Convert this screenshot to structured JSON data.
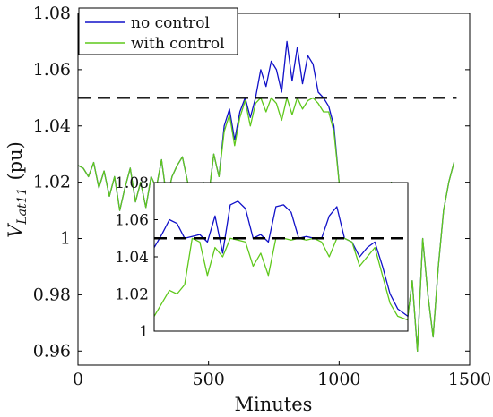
{
  "chart_data": [
    {
      "type": "line",
      "xlabel": "Minutes",
      "ylabel": "V",
      "ylabel_subscript": "Lat11",
      "ylabel_unit": "(pu)",
      "xlim": [
        0,
        1500
      ],
      "ylim": [
        0.955,
        1.08
      ],
      "xticks": [
        0,
        500,
        1000,
        1500
      ],
      "xtick_labels": [
        "0",
        "500",
        "1000",
        "1500"
      ],
      "yticks": [
        0.96,
        0.98,
        1.0,
        1.02,
        1.04,
        1.06,
        1.08
      ],
      "ytick_labels": [
        "0.96",
        "0.98",
        "1",
        "1.02",
        "1.04",
        "1.06",
        "1.08"
      ],
      "grid": false,
      "legend_position": "top-left",
      "reference_line": {
        "y": 1.05,
        "style": "dashed",
        "color": "#000000",
        "x_range": [
          0,
          1450
        ]
      },
      "series": [
        {
          "name": "no control",
          "color": "#1010c8",
          "x": [
            0,
            20,
            40,
            60,
            80,
            100,
            120,
            140,
            160,
            180,
            200,
            220,
            240,
            260,
            280,
            300,
            320,
            340,
            360,
            380,
            400,
            420,
            440,
            460,
            480,
            500,
            520,
            540,
            560,
            580,
            600,
            620,
            640,
            660,
            680,
            700,
            720,
            740,
            760,
            780,
            800,
            820,
            840,
            860,
            880,
            900,
            920,
            940,
            960,
            980,
            1000,
            1020,
            1040,
            1060,
            1080,
            1100,
            1120,
            1140,
            1160,
            1180,
            1200,
            1220,
            1240,
            1260,
            1280,
            1300,
            1320,
            1340,
            1360,
            1380,
            1400,
            1420,
            1440
          ],
          "y": [
            1.026,
            1.025,
            1.022,
            1.027,
            1.018,
            1.024,
            1.015,
            1.022,
            1.01,
            1.018,
            1.025,
            1.013,
            1.02,
            1.011,
            1.022,
            1.018,
            1.028,
            1.014,
            1.022,
            1.026,
            1.029,
            1.02,
            1.01,
            1.012,
            1.02,
            1.015,
            1.03,
            1.022,
            1.04,
            1.046,
            1.035,
            1.045,
            1.05,
            1.043,
            1.05,
            1.06,
            1.054,
            1.063,
            1.06,
            1.052,
            1.07,
            1.056,
            1.068,
            1.055,
            1.065,
            1.062,
            1.052,
            1.05,
            1.047,
            1.04,
            1.02,
            1.0,
            1.012,
            0.995,
            0.99,
            0.98,
            1.0,
            0.985,
            0.992,
            1.01,
            1.02,
            0.998,
            1.005,
            0.97,
            0.985,
            0.96,
            1.0,
            0.98,
            0.965,
            0.99,
            1.01,
            1.02,
            1.027
          ]
        },
        {
          "name": "with control",
          "color": "#5fc81c",
          "x": [
            0,
            20,
            40,
            60,
            80,
            100,
            120,
            140,
            160,
            180,
            200,
            220,
            240,
            260,
            280,
            300,
            320,
            340,
            360,
            380,
            400,
            420,
            440,
            460,
            480,
            500,
            520,
            540,
            560,
            580,
            600,
            620,
            640,
            660,
            680,
            700,
            720,
            740,
            760,
            780,
            800,
            820,
            840,
            860,
            880,
            900,
            920,
            940,
            960,
            980,
            1000,
            1020,
            1040,
            1060,
            1080,
            1100,
            1120,
            1140,
            1160,
            1180,
            1200,
            1220,
            1240,
            1260,
            1280,
            1300,
            1320,
            1340,
            1360,
            1380,
            1400,
            1420,
            1440
          ],
          "y": [
            1.026,
            1.025,
            1.022,
            1.027,
            1.018,
            1.024,
            1.015,
            1.022,
            1.01,
            1.018,
            1.025,
            1.013,
            1.02,
            1.011,
            1.022,
            1.018,
            1.028,
            1.014,
            1.022,
            1.026,
            1.029,
            1.02,
            1.01,
            1.012,
            1.02,
            1.015,
            1.03,
            1.022,
            1.038,
            1.044,
            1.033,
            1.043,
            1.049,
            1.04,
            1.048,
            1.05,
            1.045,
            1.05,
            1.048,
            1.042,
            1.05,
            1.044,
            1.05,
            1.046,
            1.049,
            1.05,
            1.048,
            1.045,
            1.045,
            1.038,
            1.02,
            1.0,
            1.012,
            0.995,
            0.99,
            0.98,
            1.0,
            0.985,
            0.992,
            1.01,
            1.02,
            0.998,
            1.005,
            0.97,
            0.985,
            0.96,
            1.0,
            0.98,
            0.965,
            0.99,
            1.01,
            1.02,
            1.027
          ]
        }
      ]
    },
    {
      "type": "line",
      "role": "inset",
      "xlim": [
        0,
        100
      ],
      "ylim": [
        1.0,
        1.08
      ],
      "yticks": [
        1.0,
        1.02,
        1.04,
        1.06,
        1.08
      ],
      "ytick_labels": [
        "1",
        "1.02",
        "1.04",
        "1.06",
        "1.08"
      ],
      "reference_line": {
        "y": 1.05,
        "style": "dashed",
        "color": "#000000"
      },
      "series": [
        {
          "name": "no control",
          "color": "#1010c8",
          "x": [
            0,
            3,
            6,
            9,
            12,
            15,
            18,
            21,
            24,
            27,
            30,
            33,
            36,
            39,
            42,
            45,
            48,
            51,
            54,
            57,
            60,
            63,
            66,
            69,
            72,
            75,
            78,
            81,
            84,
            87,
            90,
            93,
            96,
            100
          ],
          "y": [
            1.045,
            1.052,
            1.06,
            1.058,
            1.05,
            1.051,
            1.052,
            1.048,
            1.062,
            1.042,
            1.068,
            1.07,
            1.066,
            1.05,
            1.052,
            1.048,
            1.067,
            1.068,
            1.064,
            1.05,
            1.051,
            1.05,
            1.05,
            1.062,
            1.067,
            1.05,
            1.048,
            1.04,
            1.045,
            1.048,
            1.035,
            1.02,
            1.012,
            1.008
          ]
        },
        {
          "name": "with control",
          "color": "#5fc81c",
          "x": [
            0,
            3,
            6,
            9,
            12,
            15,
            18,
            21,
            24,
            27,
            30,
            33,
            36,
            39,
            42,
            45,
            48,
            51,
            54,
            57,
            60,
            63,
            66,
            69,
            72,
            75,
            78,
            81,
            84,
            87,
            90,
            93,
            96,
            100
          ],
          "y": [
            1.008,
            1.015,
            1.022,
            1.02,
            1.025,
            1.05,
            1.048,
            1.03,
            1.045,
            1.04,
            1.05,
            1.049,
            1.048,
            1.035,
            1.042,
            1.03,
            1.05,
            1.05,
            1.049,
            1.05,
            1.049,
            1.05,
            1.048,
            1.04,
            1.05,
            1.05,
            1.048,
            1.035,
            1.04,
            1.045,
            1.03,
            1.015,
            1.008,
            1.006
          ]
        }
      ]
    }
  ]
}
